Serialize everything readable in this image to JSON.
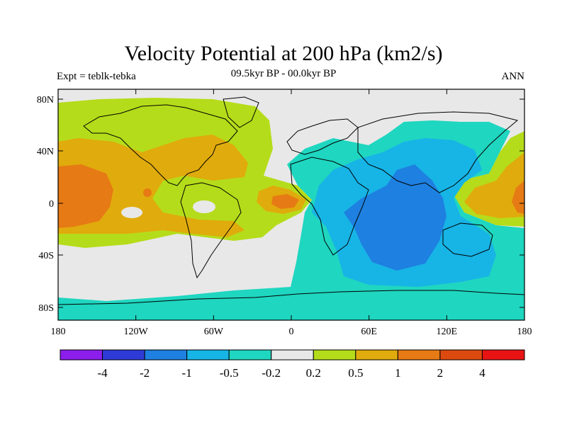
{
  "title": "Velocity Potential at 200 hPa (km2/s)",
  "left_label": "Expt = teblk-tebka",
  "center_label": "09.5kyr BP - 00.0kyr BP",
  "right_label": "ANN",
  "lat_labels": [
    "80N",
    "40N",
    "0",
    "40S",
    "80S"
  ],
  "lon_labels": [
    "180",
    "120W",
    "60W",
    "0",
    "60E",
    "120E",
    "180"
  ],
  "colorbar": {
    "colors": [
      "#8c1eeb",
      "#2e3bd6",
      "#1e80e0",
      "#17b4e6",
      "#1fd6c0",
      "#e8e8e8",
      "#b5dc1a",
      "#e0ab0c",
      "#e67a14",
      "#dc4a10",
      "#e81414"
    ],
    "labels": [
      "-4",
      "-2",
      "-1",
      "-0.5",
      "-0.2",
      "0.2",
      "0.5",
      "1",
      "2",
      "4"
    ]
  }
}
